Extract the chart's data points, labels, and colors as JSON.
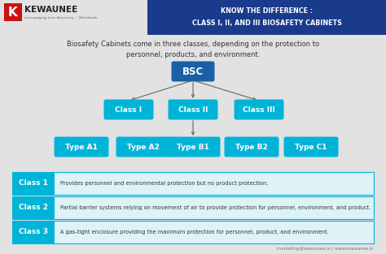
{
  "bg_color": "#e2e2e2",
  "header_bg": "#1a3a8c",
  "header_text_line1": "KNOW THE DIFFERENCE :",
  "header_text_line2": "CLASS I, II, AND III BIOSAFETY CABINETS",
  "header_text_color": "#ffffff",
  "subtitle": "Biosafety Cabinets come in three classes, depending on the protection to\npersonnel, products, and environment.",
  "subtitle_color": "#333333",
  "bsc_color": "#1a5fa8",
  "class_color": "#00b4d8",
  "type_color": "#00b4d8",
  "class_labels": [
    "Class I",
    "Class II",
    "Class III"
  ],
  "type_labels": [
    "Type A1",
    "Type A2",
    "Type B1",
    "Type B2",
    "Type C1"
  ],
  "row_labels": [
    "Class 1",
    "Class 2",
    "Class 3"
  ],
  "row_texts": [
    "Provides personnel and environmental protection but no product protection.",
    "Partial barrier systems relying on movement of air to provide protection for personnel, environment, and product.",
    "A gas-tight enclosure providing the maximum protection for personnel, product, and environment."
  ],
  "row_label_color": "#ffffff",
  "row_label_bg": "#00b4d8",
  "row_bg": "#ddf3f8",
  "row_border": "#00b4d8",
  "footer_text": "marketing@kewaunee.in / www.kewaunee.in",
  "footer_color": "#777777",
  "arrow_color": "#666666",
  "logo_k_bg": "#cc1111",
  "logo_k_color": "#ffffff",
  "logo_main_color": "#222222",
  "logo_sub_color": "#666666"
}
